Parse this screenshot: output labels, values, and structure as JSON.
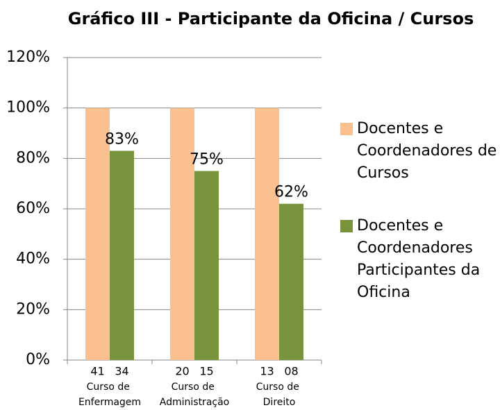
{
  "chart_data": {
    "type": "bar",
    "title": "Gráfico III - Participante da Oficina / Cursos",
    "categories": [
      "Curso de Enfermagem",
      "Curso de Administração",
      "Curso de Direito"
    ],
    "series": [
      {
        "name": "Docentes e Coordenadores de Cursos",
        "color": "#fac090",
        "values": [
          100,
          100,
          100
        ],
        "counts": [
          "41",
          "20",
          "13"
        ]
      },
      {
        "name": "Docentes e Coordenadores Participantes da Oficina",
        "color": "#77933c",
        "values": [
          83,
          75,
          62
        ],
        "value_labels": [
          "83%",
          "75%",
          "62%"
        ],
        "counts": [
          "34",
          "15",
          "08"
        ]
      }
    ],
    "ylim": [
      0,
      120
    ],
    "yticks": [
      {
        "value": 0,
        "label": "0%"
      },
      {
        "value": 20,
        "label": "20%"
      },
      {
        "value": 40,
        "label": "40%"
      },
      {
        "value": 60,
        "label": "60%"
      },
      {
        "value": 80,
        "label": "80%"
      },
      {
        "value": 100,
        "label": "100%"
      },
      {
        "value": 120,
        "label": "120%"
      }
    ],
    "grid": true,
    "legend": "right"
  }
}
